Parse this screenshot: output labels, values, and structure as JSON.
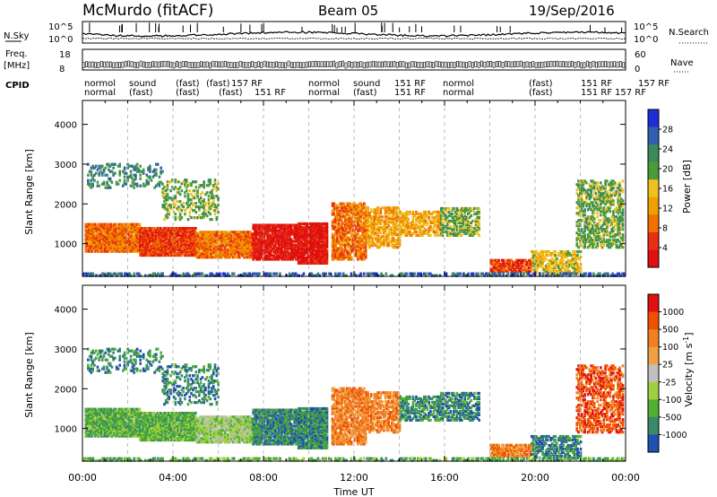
{
  "header": {
    "station": "McMurdo (fitACF)",
    "beam": "Beam 05",
    "date": "19/Sep/2016"
  },
  "summary": {
    "left_labels": [
      "N.Sky",
      "Freq.",
      "[MHz]",
      "CPID"
    ],
    "right_labels": [
      "N.Search",
      "Nave"
    ],
    "noise_ticks": [
      "10^5",
      "10^0"
    ],
    "nave_ticks": [
      "60",
      "0"
    ],
    "freq_ticks": [
      "18",
      "8"
    ],
    "cpid_row1": [
      "normol",
      "sound",
      "(fast)",
      "(fast)",
      "157 RF",
      "normol",
      "sound",
      "151 RF",
      "normol",
      "(fast)",
      "151 RF",
      "157 RF"
    ],
    "cpid_row2": [
      "normal",
      "(fast)",
      "(fast)",
      "(fast)",
      "151 RF",
      "normal",
      "(fast)",
      "151 RF",
      "normal",
      "(fast)",
      "151 RF",
      "157 RF"
    ]
  },
  "colors": {
    "power": [
      "#1f2dd6",
      "#2e5fb0",
      "#3b8a5a",
      "#4a9c3a",
      "#f0c020",
      "#f0a000",
      "#f07000",
      "#e83010",
      "#e01010"
    ],
    "velocity": [
      "#e01010",
      "#f05000",
      "#f08020",
      "#f0a040",
      "#c0c0c0",
      "#a0d040",
      "#50b030",
      "#3a8a6a",
      "#2050b0"
    ]
  },
  "chart_data": [
    {
      "type": "heatmap",
      "title": "Power",
      "ylabel": "Slant Range [km]",
      "xlabel": "Time UT",
      "x_ticks": [
        "00:00",
        "04:00",
        "08:00",
        "12:00",
        "16:00",
        "20:00",
        "00:00"
      ],
      "xlim_hours": [
        0,
        24
      ],
      "ylim": [
        180,
        4600
      ],
      "y_ticks": [
        1000,
        2000,
        3000,
        4000
      ],
      "colorbar_label": "Power [dB]",
      "colorbar_ticks": [
        4,
        8,
        12,
        16,
        20,
        24,
        28
      ]
    },
    {
      "type": "heatmap",
      "title": "Velocity",
      "ylabel": "Slant Range [km]",
      "xlabel": "Time UT",
      "x_ticks": [
        "00:00",
        "04:00",
        "08:00",
        "12:00",
        "16:00",
        "20:00",
        "00:00"
      ],
      "xlim_hours": [
        0,
        24
      ],
      "ylim": [
        180,
        4600
      ],
      "y_ticks": [
        1000,
        2000,
        3000,
        4000
      ],
      "colorbar_label": "Velocity [m s",
      "colorbar_unit_sup": "-1",
      "colorbar_ticks": [
        1000,
        500,
        100,
        25,
        -25,
        -100,
        -500,
        -1000
      ]
    }
  ]
}
